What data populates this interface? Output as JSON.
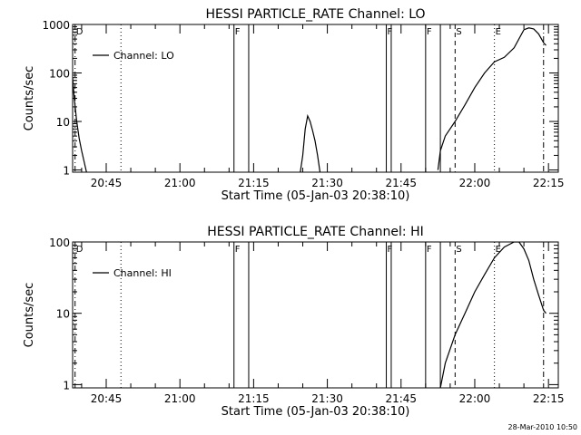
{
  "stamp": "28-Mar-2010 10:50",
  "chart_data": [
    {
      "type": "line",
      "title": "HESSI PARTICLE_RATE Channel: LO",
      "xlabel": "Start Time (05-Jan-03 20:38:10)",
      "ylabel": "Counts/sec",
      "y_scale": "log",
      "ylim": [
        0.9,
        1000
      ],
      "xlim": [
        "20:38:10",
        "22:17:00"
      ],
      "grid": false,
      "legend_position": "top-left",
      "y_ticks": [
        "1",
        "10",
        "100",
        "1000"
      ],
      "x_ticks": [
        "20:45",
        "21:00",
        "21:15",
        "21:30",
        "21:45",
        "22:00",
        "22:15"
      ],
      "series": [
        {
          "name": "Channel: LO",
          "segments": [
            [
              [
                "20:38:10",
                80
              ],
              [
                "20:38:30",
                30
              ],
              [
                "20:39:00",
                10
              ],
              [
                "20:39:30",
                4.5
              ],
              [
                "20:40:00",
                2.5
              ],
              [
                "20:40:30",
                1.5
              ],
              [
                "20:41:00",
                0.9
              ]
            ],
            [
              [
                "21:24:30",
                0.9
              ],
              [
                "21:25:00",
                2
              ],
              [
                "21:25:30",
                7
              ],
              [
                "21:26:00",
                13
              ],
              [
                "21:26:30",
                10
              ],
              [
                "21:27:00",
                6.5
              ],
              [
                "21:27:30",
                4
              ],
              [
                "21:28:00",
                2
              ],
              [
                "21:28:30",
                0.9
              ]
            ],
            [
              [
                "21:52:30",
                1
              ],
              [
                "21:53:00",
                2.5
              ],
              [
                "21:54:00",
                5
              ],
              [
                "21:56:00",
                10
              ],
              [
                "21:58:00",
                22
              ],
              [
                "22:00:00",
                50
              ],
              [
                "22:02:00",
                100
              ],
              [
                "22:04:00",
                170
              ],
              [
                "22:06:00",
                210
              ],
              [
                "22:08:00",
                330
              ],
              [
                "22:10:00",
                780
              ],
              [
                "22:11:00",
                850
              ],
              [
                "22:12:00",
                810
              ],
              [
                "22:13:00",
                640
              ],
              [
                "22:14:00",
                420
              ],
              [
                "22:14:30",
                370
              ]
            ]
          ]
        }
      ],
      "markers": [
        {
          "label": "D",
          "time": "20:38:40",
          "style": "dash-dot"
        },
        {
          "label": "",
          "time": "20:48:00",
          "style": "dotted"
        },
        {
          "label": "F",
          "time": "21:11:00",
          "style": "solid"
        },
        {
          "label": "",
          "time": "21:14:00",
          "style": "solid"
        },
        {
          "label": "F",
          "time": "21:42:00",
          "style": "solid"
        },
        {
          "label": "",
          "time": "21:43:00",
          "style": "solid"
        },
        {
          "label": "F",
          "time": "21:50:00",
          "style": "solid"
        },
        {
          "label": "",
          "time": "21:53:00",
          "style": "solid"
        },
        {
          "label": "S",
          "time": "21:56:00",
          "style": "dashed"
        },
        {
          "label": "E",
          "time": "22:04:00",
          "style": "dotted"
        },
        {
          "label": "",
          "time": "22:14:00",
          "style": "dash-dot"
        }
      ]
    },
    {
      "type": "line",
      "title": "HESSI PARTICLE_RATE Channel: HI",
      "xlabel": "Start Time (05-Jan-03 20:38:10)",
      "ylabel": "Counts/sec",
      "y_scale": "log",
      "ylim": [
        0.9,
        100
      ],
      "xlim": [
        "20:38:10",
        "22:17:00"
      ],
      "grid": false,
      "legend_position": "top-left",
      "y_ticks": [
        "1",
        "10",
        "100"
      ],
      "x_ticks": [
        "20:45",
        "21:00",
        "21:15",
        "21:30",
        "21:45",
        "22:00",
        "22:15"
      ],
      "series": [
        {
          "name": "Channel: HI",
          "segments": [
            [
              [
                "21:53:00",
                0.9
              ],
              [
                "21:54:00",
                2
              ],
              [
                "21:56:00",
                5
              ],
              [
                "21:58:00",
                10
              ],
              [
                "22:00:00",
                20
              ],
              [
                "22:02:00",
                35
              ],
              [
                "22:04:00",
                60
              ],
              [
                "22:06:00",
                85
              ],
              [
                "22:08:00",
                100
              ],
              [
                "22:09:00",
                100
              ],
              [
                "22:10:00",
                80
              ],
              [
                "22:11:00",
                55
              ],
              [
                "22:12:00",
                30
              ],
              [
                "22:13:00",
                18
              ],
              [
                "22:14:00",
                11
              ],
              [
                "22:14:30",
                10
              ]
            ]
          ]
        }
      ],
      "markers": [
        {
          "label": "D",
          "time": "20:38:40",
          "style": "dash-dot"
        },
        {
          "label": "",
          "time": "20:48:00",
          "style": "dotted"
        },
        {
          "label": "F",
          "time": "21:11:00",
          "style": "solid"
        },
        {
          "label": "",
          "time": "21:14:00",
          "style": "solid"
        },
        {
          "label": "F",
          "time": "21:42:00",
          "style": "solid"
        },
        {
          "label": "",
          "time": "21:43:00",
          "style": "solid"
        },
        {
          "label": "F",
          "time": "21:50:00",
          "style": "solid"
        },
        {
          "label": "",
          "time": "21:53:00",
          "style": "solid"
        },
        {
          "label": "S",
          "time": "21:56:00",
          "style": "dashed"
        },
        {
          "label": "E",
          "time": "22:04:00",
          "style": "dotted"
        },
        {
          "label": "",
          "time": "22:14:00",
          "style": "dash-dot"
        }
      ]
    }
  ]
}
